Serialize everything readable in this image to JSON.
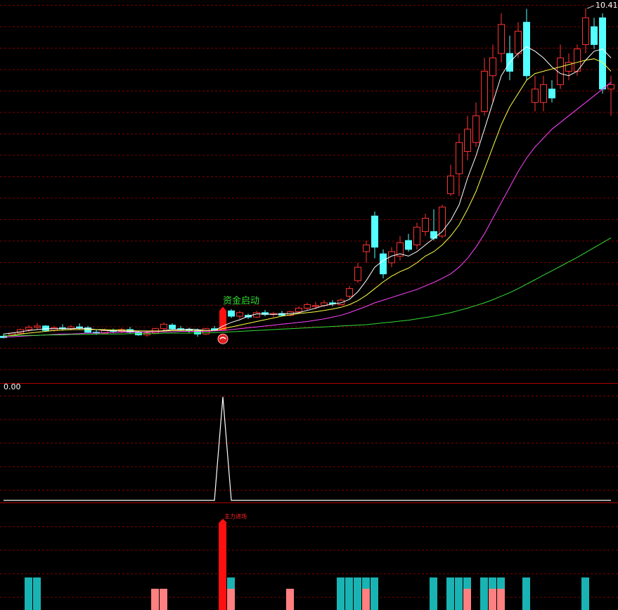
{
  "chart_data": [
    {
      "type": "candlestick",
      "open": [
        3.05,
        3.08,
        3.12,
        3.2,
        3.25,
        3.28,
        3.18,
        3.24,
        3.22,
        3.26,
        3.24,
        3.14,
        3.12,
        3.18,
        3.16,
        3.2,
        3.14,
        3.08,
        3.12,
        3.22,
        3.3,
        3.22,
        3.2,
        3.18,
        3.1,
        3.22,
        3.18,
        3.62,
        3.5,
        3.52,
        3.48,
        3.58,
        3.54,
        3.56,
        3.52,
        3.6,
        3.68,
        3.72,
        3.74,
        3.8,
        3.76,
        3.95,
        4.3,
        4.95,
        5.75,
        4.9,
        4.7,
        4.85,
        5.2,
        5.1,
        5.4,
        5.4,
        5.3,
        6.25,
        6.7,
        7.2,
        7.4,
        8.1,
        8.9,
        9.4,
        9.4,
        9.4,
        10.1,
        8.3,
        8.3,
        8.6,
        8.7,
        9.0,
        9.0,
        9.6,
        10.0,
        10.2,
        8.6
      ],
      "high": [
        3.1,
        3.15,
        3.22,
        3.3,
        3.35,
        3.3,
        3.28,
        3.32,
        3.3,
        3.34,
        3.28,
        3.2,
        3.22,
        3.22,
        3.24,
        3.26,
        3.18,
        3.16,
        3.24,
        3.36,
        3.34,
        3.28,
        3.24,
        3.22,
        3.24,
        3.28,
        3.62,
        3.66,
        3.62,
        3.56,
        3.62,
        3.64,
        3.6,
        3.62,
        3.62,
        3.72,
        3.8,
        3.82,
        3.86,
        3.86,
        3.9,
        4.18,
        4.7,
        5.2,
        5.85,
        5.0,
        5.05,
        5.3,
        5.35,
        5.6,
        5.8,
        5.9,
        6.0,
        6.9,
        7.6,
        8.0,
        8.3,
        9.3,
        9.6,
        10.3,
        9.8,
        10.1,
        10.4,
        8.9,
        8.9,
        8.8,
        9.6,
        9.4,
        9.6,
        10.41,
        10.2,
        10.3,
        8.9
      ],
      "low": [
        3.0,
        3.05,
        3.1,
        3.15,
        3.2,
        3.15,
        3.15,
        3.18,
        3.18,
        3.2,
        3.12,
        3.08,
        3.1,
        3.12,
        3.12,
        3.1,
        3.06,
        3.04,
        3.1,
        3.18,
        3.2,
        3.18,
        3.12,
        3.04,
        3.08,
        3.16,
        3.18,
        3.46,
        3.44,
        3.44,
        3.46,
        3.5,
        3.48,
        3.5,
        3.5,
        3.56,
        3.64,
        3.66,
        3.7,
        3.72,
        3.74,
        3.9,
        4.25,
        4.7,
        4.8,
        4.35,
        4.6,
        4.75,
        4.95,
        5.0,
        5.3,
        5.2,
        5.25,
        6.2,
        6.2,
        7.0,
        7.3,
        8.0,
        8.3,
        9.2,
        8.8,
        9.3,
        8.8,
        8.1,
        8.1,
        8.3,
        8.6,
        8.8,
        8.9,
        9.4,
        9.5,
        8.5,
        8.0
      ],
      "close": [
        3.02,
        3.12,
        3.2,
        3.25,
        3.28,
        3.18,
        3.24,
        3.22,
        3.26,
        3.24,
        3.14,
        3.12,
        3.18,
        3.16,
        3.2,
        3.14,
        3.08,
        3.12,
        3.22,
        3.32,
        3.22,
        3.2,
        3.18,
        3.1,
        3.22,
        3.18,
        3.62,
        3.5,
        3.58,
        3.48,
        3.58,
        3.54,
        3.56,
        3.52,
        3.6,
        3.68,
        3.76,
        3.74,
        3.8,
        3.78,
        3.86,
        4.12,
        4.6,
        5.1,
        5.05,
        4.45,
        4.95,
        5.15,
        5.0,
        5.5,
        5.7,
        5.25,
        5.95,
        6.65,
        7.4,
        7.7,
        8.0,
        9.0,
        9.3,
        10.05,
        9.0,
        9.9,
        8.9,
        8.6,
        8.7,
        8.4,
        9.3,
        9.2,
        9.5,
        10.2,
        9.6,
        8.6,
        8.7
      ],
      "up_color": "#ff3232",
      "down_color": "#54ffff",
      "series": [
        {
          "color": "#ffffff",
          "values": [
            3.1,
            3.12,
            3.15,
            3.18,
            3.2,
            3.22,
            3.22,
            3.22,
            3.22,
            3.23,
            3.22,
            3.2,
            3.18,
            3.17,
            3.17,
            3.16,
            3.15,
            3.14,
            3.15,
            3.18,
            3.2,
            3.2,
            3.21,
            3.2,
            3.18,
            3.18,
            3.28,
            3.36,
            3.42,
            3.5,
            3.55,
            3.55,
            3.54,
            3.55,
            3.56,
            3.58,
            3.63,
            3.68,
            3.74,
            3.77,
            3.8,
            3.88,
            4.05,
            4.3,
            4.6,
            4.75,
            4.85,
            4.9,
            4.85,
            4.95,
            5.1,
            5.25,
            5.4,
            5.65,
            6.0,
            6.6,
            7.1,
            7.7,
            8.3,
            8.9,
            9.2,
            9.4,
            9.55,
            9.45,
            9.3,
            9.1,
            8.95,
            8.9,
            9.0,
            9.25,
            9.45,
            9.5,
            9.3
          ]
        },
        {
          "color": "#ffff44",
          "values": [
            3.05,
            3.07,
            3.1,
            3.12,
            3.14,
            3.16,
            3.18,
            3.19,
            3.2,
            3.2,
            3.2,
            3.2,
            3.2,
            3.19,
            3.19,
            3.18,
            3.17,
            3.17,
            3.17,
            3.17,
            3.18,
            3.18,
            3.18,
            3.18,
            3.18,
            3.18,
            3.22,
            3.26,
            3.3,
            3.34,
            3.38,
            3.42,
            3.46,
            3.5,
            3.53,
            3.56,
            3.58,
            3.6,
            3.63,
            3.66,
            3.7,
            3.76,
            3.85,
            3.97,
            4.12,
            4.27,
            4.4,
            4.5,
            4.58,
            4.7,
            4.85,
            4.95,
            5.1,
            5.3,
            5.55,
            5.9,
            6.3,
            6.8,
            7.3,
            7.8,
            8.2,
            8.5,
            8.8,
            8.95,
            9.0,
            9.05,
            9.1,
            9.15,
            9.2,
            9.25,
            9.28,
            9.2,
            9.0
          ]
        },
        {
          "color": "#ff44ff",
          "values": [
            3.03,
            3.04,
            3.05,
            3.06,
            3.07,
            3.08,
            3.09,
            3.1,
            3.1,
            3.11,
            3.12,
            3.12,
            3.13,
            3.13,
            3.14,
            3.14,
            3.14,
            3.15,
            3.15,
            3.15,
            3.15,
            3.16,
            3.16,
            3.16,
            3.16,
            3.17,
            3.18,
            3.2,
            3.22,
            3.24,
            3.26,
            3.28,
            3.3,
            3.32,
            3.34,
            3.36,
            3.38,
            3.41,
            3.44,
            3.48,
            3.52,
            3.58,
            3.65,
            3.72,
            3.8,
            3.86,
            3.92,
            3.98,
            4.04,
            4.1,
            4.18,
            4.26,
            4.35,
            4.45,
            4.6,
            4.8,
            5.05,
            5.35,
            5.7,
            6.05,
            6.4,
            6.75,
            7.05,
            7.3,
            7.5,
            7.7,
            7.85,
            8.0,
            8.15,
            8.3,
            8.45,
            8.6,
            8.75
          ]
        },
        {
          "color": "#33dd33",
          "values": [
            3.06,
            3.06,
            3.07,
            3.07,
            3.07,
            3.08,
            3.08,
            3.08,
            3.09,
            3.09,
            3.09,
            3.1,
            3.1,
            3.1,
            3.1,
            3.11,
            3.11,
            3.11,
            3.11,
            3.12,
            3.12,
            3.12,
            3.12,
            3.13,
            3.13,
            3.13,
            3.14,
            3.15,
            3.16,
            3.17,
            3.18,
            3.19,
            3.2,
            3.21,
            3.22,
            3.23,
            3.24,
            3.25,
            3.26,
            3.27,
            3.28,
            3.29,
            3.3,
            3.31,
            3.33,
            3.35,
            3.37,
            3.39,
            3.41,
            3.44,
            3.47,
            3.5,
            3.54,
            3.58,
            3.63,
            3.68,
            3.74,
            3.8,
            3.87,
            3.95,
            4.03,
            4.12,
            4.22,
            4.32,
            4.42,
            4.52,
            4.62,
            4.72,
            4.82,
            4.93,
            5.04,
            5.15,
            5.26
          ]
        }
      ],
      "annotations": [
        {
          "text": "资金启动",
          "x": 26,
          "color": "#33dd33"
        }
      ],
      "max_label": {
        "value": 10.41,
        "x": 69
      },
      "ylim": [
        2.0,
        10.6
      ]
    },
    {
      "type": "line",
      "color": "#ffffff",
      "values": [
        0,
        0,
        0,
        0,
        0,
        0,
        0,
        0,
        0,
        0,
        0,
        0,
        0,
        0,
        0,
        0,
        0,
        0,
        0,
        0,
        0,
        0,
        0,
        0,
        0,
        0,
        100,
        0,
        0,
        0,
        0,
        0,
        0,
        0,
        0,
        0,
        0,
        0,
        0,
        0,
        0,
        0,
        0,
        0,
        0,
        0,
        0,
        0,
        0,
        0,
        0,
        0,
        0,
        0,
        0,
        0,
        0,
        0,
        0,
        0,
        0,
        0,
        0,
        0,
        0,
        0,
        0,
        0,
        0,
        0,
        0,
        0,
        0
      ],
      "last_value": {
        "value": 0,
        "label": "0.00"
      },
      "ylim": [
        0,
        112
      ]
    },
    {
      "type": "bar",
      "series": [
        {
          "color": "#1ab3b3",
          "values": [
            null,
            null,
            null,
            46,
            46,
            null,
            null,
            null,
            null,
            null,
            null,
            null,
            null,
            null,
            null,
            null,
            null,
            null,
            null,
            null,
            null,
            null,
            null,
            null,
            null,
            null,
            null,
            46,
            null,
            null,
            null,
            null,
            null,
            null,
            null,
            null,
            null,
            null,
            null,
            null,
            46,
            46,
            46,
            46,
            46,
            null,
            null,
            null,
            null,
            null,
            null,
            46,
            null,
            46,
            46,
            46,
            null,
            46,
            46,
            46,
            null,
            null,
            46,
            null,
            null,
            null,
            null,
            null,
            null,
            46,
            null,
            null,
            null
          ]
        },
        {
          "color": "#ff8080",
          "values": [
            null,
            null,
            null,
            null,
            null,
            null,
            null,
            null,
            null,
            null,
            null,
            null,
            null,
            null,
            null,
            null,
            null,
            null,
            30,
            30,
            null,
            null,
            null,
            null,
            null,
            null,
            null,
            30,
            null,
            null,
            null,
            null,
            null,
            null,
            30,
            null,
            null,
            null,
            null,
            null,
            null,
            null,
            null,
            30,
            null,
            null,
            null,
            null,
            null,
            null,
            null,
            null,
            null,
            null,
            null,
            30,
            null,
            null,
            30,
            30,
            null,
            null,
            null,
            null,
            null,
            null,
            null,
            null,
            null,
            null,
            null,
            null,
            null
          ]
        },
        {
          "color": "#ff1010",
          "values": [
            null,
            null,
            null,
            null,
            null,
            null,
            null,
            null,
            null,
            null,
            null,
            null,
            null,
            null,
            null,
            null,
            null,
            null,
            null,
            null,
            null,
            null,
            null,
            null,
            null,
            null,
            123,
            null,
            null,
            null,
            null,
            null,
            null,
            null,
            null,
            null,
            null,
            null,
            null,
            null,
            null,
            null,
            null,
            null,
            null,
            null,
            null,
            null,
            null,
            null,
            null,
            null,
            null,
            null,
            null,
            null,
            null,
            null,
            null,
            null,
            null,
            null,
            null,
            null,
            null,
            null,
            null,
            null,
            null,
            null,
            null,
            null,
            null
          ]
        }
      ],
      "annotations": [
        {
          "text": "主力进场",
          "x": 26,
          "color": "#ff2020"
        }
      ],
      "ylim": [
        0,
        150
      ]
    }
  ]
}
